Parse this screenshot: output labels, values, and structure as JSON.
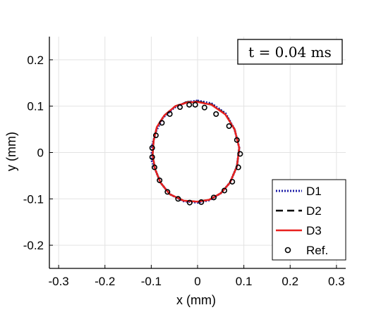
{
  "chart_data": {
    "type": "line",
    "annotation": "t = 0.04 ms",
    "xlabel": "x (mm)",
    "ylabel": "y (mm)",
    "xlim": [
      -0.32,
      0.32
    ],
    "ylim": [
      -0.25,
      0.25
    ],
    "xticks": [
      -0.3,
      -0.2,
      -0.1,
      0,
      0.1,
      0.2,
      0.3
    ],
    "xtick_labels": [
      "-0.3",
      "-0.2",
      "-0.1",
      "0",
      "0.1",
      "0.2",
      "0.3"
    ],
    "yticks": [
      -0.2,
      -0.1,
      0,
      0.1,
      0.2
    ],
    "ytick_labels": [
      "-0.2",
      "-0.1",
      "0",
      "0.1",
      "0.2"
    ],
    "grid": true,
    "legend_position": "bottom-right",
    "series": [
      {
        "name": "D1",
        "style": "dotted",
        "color": "#1f1fa8",
        "x": [
          0.0,
          0.03,
          0.06,
          0.08,
          0.09,
          0.085,
          0.07,
          0.05,
          0.025,
          0.0,
          -0.03,
          -0.06,
          -0.08,
          -0.092,
          -0.1,
          -0.098,
          -0.09,
          -0.075,
          -0.05,
          -0.025,
          0.0
        ],
        "y": [
          0.112,
          0.106,
          0.085,
          0.05,
          0.01,
          -0.03,
          -0.065,
          -0.088,
          -0.103,
          -0.108,
          -0.105,
          -0.09,
          -0.065,
          -0.035,
          -0.015,
          0.015,
          0.045,
          0.075,
          0.097,
          0.108,
          0.112
        ]
      },
      {
        "name": "D2",
        "style": "dashed",
        "color": "#000000",
        "x": [
          0.0,
          0.03,
          0.06,
          0.08,
          0.09,
          0.085,
          0.07,
          0.05,
          0.025,
          0.0,
          -0.03,
          -0.06,
          -0.08,
          -0.092,
          -0.097,
          -0.095,
          -0.088,
          -0.072,
          -0.048,
          -0.022,
          0.0
        ],
        "y": [
          0.11,
          0.104,
          0.083,
          0.05,
          0.01,
          -0.03,
          -0.065,
          -0.088,
          -0.102,
          -0.106,
          -0.104,
          -0.09,
          -0.065,
          -0.035,
          -0.005,
          0.025,
          0.055,
          0.08,
          0.1,
          0.109,
          0.11
        ]
      },
      {
        "name": "D3",
        "style": "solid",
        "color": "#e8201e",
        "x": [
          0.0,
          0.03,
          0.06,
          0.08,
          0.09,
          0.085,
          0.07,
          0.05,
          0.025,
          0.0,
          -0.03,
          -0.06,
          -0.08,
          -0.092,
          -0.097,
          -0.095,
          -0.088,
          -0.072,
          -0.048,
          -0.022,
          0.0
        ],
        "y": [
          0.109,
          0.103,
          0.082,
          0.05,
          0.01,
          -0.03,
          -0.065,
          -0.088,
          -0.102,
          -0.106,
          -0.104,
          -0.09,
          -0.065,
          -0.035,
          -0.005,
          0.025,
          0.055,
          0.08,
          0.1,
          0.108,
          0.109
        ]
      },
      {
        "name": "Ref.",
        "style": "markers",
        "color": "#000000",
        "x": [
          -0.005,
          0.015,
          0.04,
          0.068,
          0.085,
          0.092,
          0.088,
          0.075,
          0.058,
          0.035,
          0.008,
          -0.017,
          -0.042,
          -0.065,
          -0.082,
          -0.093,
          -0.098,
          -0.098,
          -0.09,
          -0.077,
          -0.06,
          -0.038,
          -0.018
        ],
        "y": [
          0.103,
          0.097,
          0.083,
          0.057,
          0.027,
          -0.003,
          -0.032,
          -0.063,
          -0.082,
          -0.097,
          -0.107,
          -0.108,
          -0.1,
          -0.085,
          -0.06,
          -0.032,
          -0.01,
          0.01,
          0.037,
          0.064,
          0.083,
          0.098,
          0.103
        ]
      }
    ]
  }
}
